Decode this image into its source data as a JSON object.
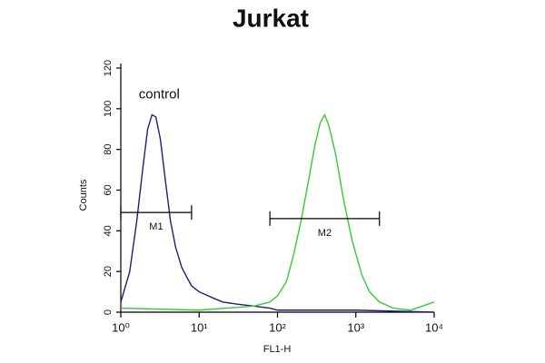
{
  "chart_data": {
    "type": "histogram-line",
    "title": "Jurkat",
    "x_label": "FL1-H",
    "y_label": "Counts",
    "xscale": "log",
    "xlim": [
      1,
      10000
    ],
    "ylim": [
      0,
      120
    ],
    "xticks": [
      {
        "value": 1,
        "label": "10⁰"
      },
      {
        "value": 10,
        "label": "10¹"
      },
      {
        "value": 100,
        "label": "10²"
      },
      {
        "value": 1000,
        "label": "10³"
      },
      {
        "value": 10000,
        "label": "10⁴"
      }
    ],
    "yticks": [
      0,
      20,
      40,
      60,
      80,
      100,
      120
    ],
    "series": [
      {
        "name": "control",
        "color": "#1f1f7a",
        "x": [
          1,
          1.3,
          1.6,
          1.9,
          2.2,
          2.5,
          2.8,
          3.2,
          3.7,
          4.3,
          5,
          6,
          7,
          8,
          10,
          15,
          20,
          30,
          50,
          80,
          100,
          300,
          1000,
          10000
        ],
        "values": [
          5,
          20,
          45,
          70,
          90,
          97,
          96,
          85,
          65,
          45,
          32,
          22,
          17,
          13,
          10,
          7,
          5,
          4,
          3,
          2,
          1,
          1,
          1,
          0
        ]
      },
      {
        "color": "#33cc33",
        "x": [
          1,
          10,
          50,
          80,
          100,
          130,
          160,
          200,
          250,
          300,
          350,
          400,
          450,
          550,
          700,
          900,
          1200,
          1500,
          2000,
          3000,
          5000,
          10000
        ],
        "values": [
          2,
          1,
          3,
          5,
          8,
          15,
          28,
          45,
          65,
          82,
          93,
          97,
          92,
          78,
          55,
          35,
          18,
          10,
          5,
          2,
          1,
          5
        ]
      }
    ],
    "markers": [
      {
        "label": "M1",
        "x": [
          1,
          8
        ],
        "y": 49
      },
      {
        "label": "M2",
        "x": [
          80,
          2000
        ],
        "y": 46
      }
    ]
  }
}
